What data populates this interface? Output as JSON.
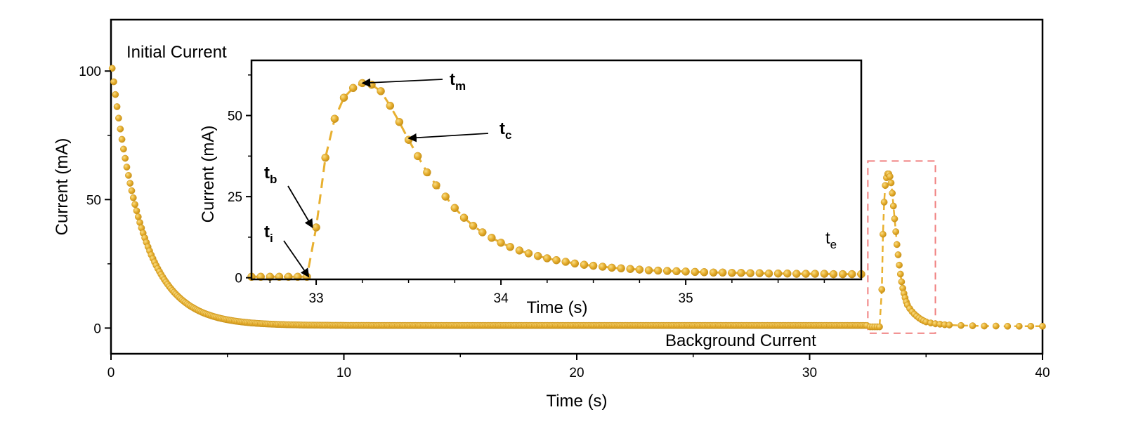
{
  "colors": {
    "series": "#E8B030",
    "series_dark": "#C8921A",
    "marker_light": "#F6D77A",
    "zoom_box": "#F08080",
    "axis": "#000000"
  },
  "chart_data": [
    {
      "id": "main",
      "type": "scatter",
      "xlabel": "Time (s)",
      "ylabel": "Current (mA)",
      "xlim": [
        0,
        40
      ],
      "ylim": [
        -10,
        120
      ],
      "xticks": [
        0,
        10,
        20,
        30,
        40
      ],
      "yticks": [
        0,
        50,
        100
      ],
      "series": [
        {
          "decay": {
            "i0": 105,
            "i_background": 1.0,
            "tau": 1.3,
            "x_start": 0.05,
            "x_end": 32.5,
            "step": 0.07
          },
          "pulse": {
            "x": [
              32.6,
              32.7,
              32.8,
              32.9,
              33.0,
              33.1,
              33.15,
              33.2,
              33.25,
              33.3,
              33.35,
              33.4,
              33.45,
              33.5,
              33.55,
              33.6,
              33.65,
              33.7,
              33.75,
              33.8,
              33.85,
              33.9,
              33.95,
              34.0,
              34.05,
              34.1,
              34.15,
              34.2,
              34.3,
              34.4,
              34.5,
              34.6,
              34.7,
              34.8,
              34.9,
              35.0,
              35.2,
              35.4,
              35.6,
              35.8,
              36.0,
              36.5,
              37.0,
              37.5,
              38.0,
              38.5,
              39.0,
              39.5,
              40.0
            ],
            "y": [
              0.5,
              0.5,
              0.5,
              0.5,
              0.5,
              15,
              36.5,
              49,
              55.5,
              58.5,
              60,
              60,
              59,
              56.5,
              52.5,
              47.5,
              42.5,
              37.5,
              32.5,
              28.5,
              24.5,
              21,
              18,
              15.5,
              13.5,
              11.8,
              10.2,
              9,
              7.6,
              6.4,
              5.4,
              4.6,
              3.9,
              3.3,
              2.8,
              2.4,
              2,
              1.7,
              1.5,
              1.3,
              1.2,
              1.0,
              0.9,
              0.8,
              0.8,
              0.7,
              0.7,
              0.7,
              0.7
            ]
          }
        }
      ],
      "zoom_box": {
        "xlim": [
          32.5,
          35.4
        ],
        "ylim": [
          -2,
          65
        ]
      },
      "annotations": [
        {
          "id": "initial-current",
          "text": "Initial Current"
        },
        {
          "id": "background-current",
          "text": "Background Current"
        }
      ]
    },
    {
      "id": "inset",
      "type": "line",
      "xlabel": "Time (s)",
      "ylabel": "Current (mA)",
      "xlim": [
        32.65,
        35.95
      ],
      "ylim": [
        -0.5,
        67
      ],
      "xticks": [
        33,
        34,
        35
      ],
      "yticks": [
        0,
        25,
        50
      ],
      "series": [
        {
          "x": [
            32.65,
            32.7,
            32.75,
            32.8,
            32.85,
            32.9,
            32.95,
            33.0,
            33.05,
            33.1,
            33.15,
            33.2,
            33.25,
            33.3,
            33.35,
            33.4,
            33.45,
            33.5,
            33.55,
            33.6,
            33.65,
            33.7,
            33.75,
            33.8,
            33.85,
            33.9,
            33.95,
            34.0,
            34.05,
            34.1,
            34.15,
            34.2,
            34.25,
            34.3,
            34.35,
            34.4,
            34.45,
            34.5,
            34.55,
            34.6,
            34.65,
            34.7,
            34.75,
            34.8,
            34.85,
            34.9,
            34.95,
            35.0,
            35.05,
            35.1,
            35.15,
            35.2,
            35.25,
            35.3,
            35.35,
            35.4,
            35.45,
            35.5,
            35.55,
            35.6,
            35.65,
            35.7,
            35.75,
            35.8,
            35.85,
            35.9,
            35.95
          ],
          "y": [
            0.3,
            0.3,
            0.3,
            0.3,
            0.3,
            0.3,
            0.3,
            15.5,
            37,
            49,
            55.5,
            58.5,
            60,
            59.5,
            57.5,
            53,
            48,
            42.5,
            37.5,
            32.5,
            28.5,
            25,
            21.5,
            18.5,
            16,
            14,
            12.3,
            10.8,
            9.5,
            8.4,
            7.5,
            6.7,
            6.0,
            5.4,
            4.9,
            4.4,
            4.0,
            3.7,
            3.4,
            3.1,
            2.9,
            2.7,
            2.5,
            2.3,
            2.2,
            2.1,
            2.0,
            1.9,
            1.8,
            1.7,
            1.6,
            1.6,
            1.5,
            1.5,
            1.4,
            1.4,
            1.3,
            1.3,
            1.3,
            1.2,
            1.2,
            1.2,
            1.2,
            1.1,
            1.1,
            1.1,
            1.1
          ]
        }
      ],
      "annotations": [
        {
          "id": "tm",
          "base": "t",
          "sub": "m",
          "bold": true,
          "target": [
            33.25,
            60
          ]
        },
        {
          "id": "tc",
          "base": "t",
          "sub": "c",
          "bold": true,
          "target": [
            33.5,
            43
          ]
        },
        {
          "id": "tb",
          "base": "t",
          "sub": "b",
          "bold": true,
          "target": [
            32.98,
            15.5
          ]
        },
        {
          "id": "ti",
          "base": "t",
          "sub": "i",
          "bold": true,
          "target": [
            32.96,
            0.3
          ]
        },
        {
          "id": "te",
          "base": "t",
          "sub": "e",
          "bold": false,
          "target": null
        }
      ]
    }
  ]
}
